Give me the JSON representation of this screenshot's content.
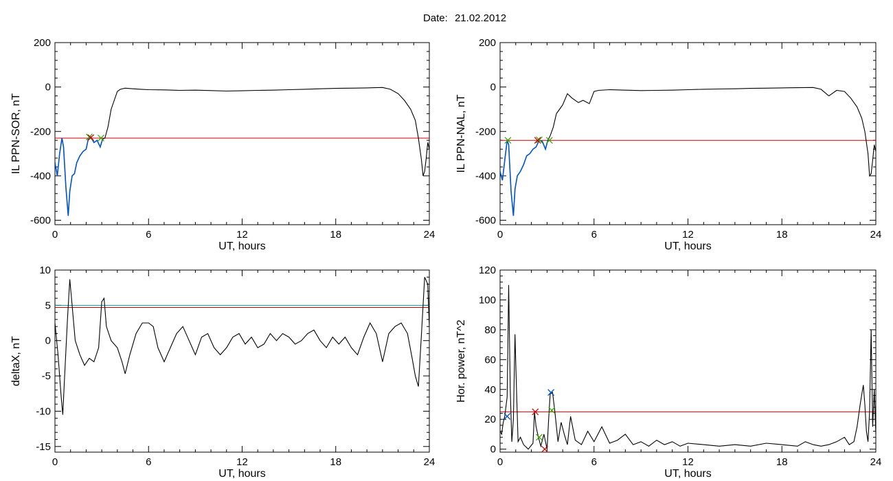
{
  "header": {
    "date_label": "Date:",
    "date_value": "21.02.2012"
  },
  "colors": {
    "trace": "#000000",
    "threshold": "#cc0000",
    "threshold2": "#009999",
    "highlight": "#0055cc",
    "marker_green": "#33aa00",
    "marker_red": "#cc0000",
    "marker_blue": "#0055cc"
  },
  "chart_data": [
    {
      "id": "il-sor",
      "type": "line",
      "xlabel": "UT, hours",
      "ylabel": "IL PPN-SOR, nT",
      "xlim": [
        0,
        24
      ],
      "ylim": [
        -620,
        200
      ],
      "xticks": [
        0,
        6,
        12,
        18,
        24
      ],
      "yticks": [
        -600,
        -400,
        -200,
        0,
        200
      ],
      "thresholds": [
        -230
      ],
      "highlight_range": [
        0,
        3.1
      ],
      "series": [
        {
          "x": [
            0.0,
            0.15,
            0.3,
            0.45,
            0.55,
            0.7,
            0.85,
            0.95,
            1.1,
            1.25,
            1.4,
            1.6,
            1.8,
            2.0,
            2.15,
            2.3,
            2.5,
            2.7,
            2.9,
            3.05,
            3.2,
            3.4,
            3.6,
            3.8,
            4.0,
            4.2,
            4.5,
            5.0,
            5.5,
            6.0,
            7.0,
            8.0,
            9.0,
            10.0,
            11.0,
            12.0,
            13.0,
            14.0,
            15.0,
            16.0,
            17.0,
            18.0,
            19.0,
            20.0,
            20.5,
            21.0,
            21.5,
            22.0,
            22.4,
            22.8,
            23.1,
            23.3,
            23.5,
            23.6,
            23.7,
            23.8,
            23.9,
            24.0
          ],
          "y": [
            -340,
            -400,
            -300,
            -230,
            -270,
            -450,
            -580,
            -470,
            -400,
            -390,
            -340,
            -310,
            -290,
            -280,
            -230,
            -225,
            -250,
            -240,
            -270,
            -235,
            -230,
            -180,
            -100,
            -60,
            -20,
            -10,
            -5,
            -8,
            -10,
            -12,
            -13,
            -15,
            -14,
            -16,
            -18,
            -17,
            -15,
            -14,
            -12,
            -10,
            -8,
            -6,
            -5,
            -4,
            -3,
            -2,
            -10,
            -30,
            -60,
            -100,
            -150,
            -230,
            -330,
            -400,
            -380,
            -320,
            -250,
            -280
          ]
        }
      ],
      "markers": [
        {
          "x": 2.2,
          "y": -225,
          "color": "green"
        },
        {
          "x": 2.95,
          "y": -230,
          "color": "green"
        },
        {
          "x": 2.3,
          "y": -228,
          "color": "red"
        }
      ]
    },
    {
      "id": "il-nal",
      "type": "line",
      "xlabel": "UT, hours",
      "ylabel": "IL PPN-NAL, nT",
      "xlim": [
        0,
        24
      ],
      "ylim": [
        -620,
        200
      ],
      "xticks": [
        0,
        6,
        12,
        18,
        24
      ],
      "yticks": [
        -600,
        -400,
        -200,
        0,
        200
      ],
      "thresholds": [
        -240
      ],
      "highlight_range": [
        0,
        3.1
      ],
      "series": [
        {
          "x": [
            0.0,
            0.15,
            0.3,
            0.45,
            0.55,
            0.7,
            0.85,
            0.95,
            1.1,
            1.3,
            1.5,
            1.7,
            1.9,
            2.1,
            2.3,
            2.5,
            2.7,
            2.9,
            3.05,
            3.2,
            3.4,
            3.6,
            3.8,
            4.0,
            4.3,
            4.6,
            5.0,
            5.3,
            5.7,
            6.0,
            6.3,
            7.0,
            8.0,
            9.0,
            10.0,
            11.0,
            12.0,
            13.0,
            14.0,
            15.0,
            16.0,
            17.0,
            18.0,
            19.0,
            20.0,
            20.5,
            21.0,
            21.5,
            22.0,
            22.4,
            22.8,
            23.1,
            23.3,
            23.5,
            23.6,
            23.7,
            23.8,
            23.9,
            24.0
          ],
          "y": [
            -380,
            -420,
            -330,
            -240,
            -260,
            -470,
            -580,
            -460,
            -400,
            -380,
            -350,
            -310,
            -300,
            -280,
            -270,
            -240,
            -245,
            -280,
            -240,
            -220,
            -180,
            -120,
            -100,
            -80,
            -30,
            -50,
            -70,
            -60,
            -75,
            -20,
            -15,
            -12,
            -14,
            -16,
            -15,
            -14,
            -12,
            -10,
            -9,
            -8,
            -6,
            -5,
            -4,
            -3,
            -2,
            -10,
            -40,
            -15,
            -20,
            -50,
            -90,
            -140,
            -200,
            -300,
            -400,
            -390,
            -330,
            -260,
            -290
          ]
        }
      ],
      "markers": [
        {
          "x": 0.5,
          "y": -240,
          "color": "green"
        },
        {
          "x": 2.5,
          "y": -238,
          "color": "green"
        },
        {
          "x": 3.15,
          "y": -240,
          "color": "green"
        },
        {
          "x": 2.4,
          "y": -240,
          "color": "red"
        }
      ]
    },
    {
      "id": "delta-x",
      "type": "line",
      "xlabel": "UT, hours",
      "ylabel": "deltaX, nT",
      "xlim": [
        0,
        24
      ],
      "ylim": [
        -15.8,
        10
      ],
      "xticks": [
        0,
        6,
        12,
        18,
        24
      ],
      "yticks": [
        -15,
        -10,
        -5,
        0,
        5,
        10
      ],
      "thresholds": [
        5.0,
        4.7
      ],
      "highlight_range": null,
      "series": [
        {
          "x": [
            0.0,
            0.2,
            0.4,
            0.5,
            0.6,
            0.8,
            0.95,
            1.1,
            1.3,
            1.6,
            1.9,
            2.2,
            2.5,
            2.8,
            3.0,
            3.15,
            3.3,
            3.6,
            4.0,
            4.3,
            4.5,
            4.8,
            5.2,
            5.6,
            6.0,
            6.3,
            6.6,
            7.0,
            7.4,
            7.8,
            8.2,
            8.6,
            9.0,
            9.4,
            9.8,
            10.2,
            10.6,
            11.0,
            11.4,
            11.8,
            12.2,
            12.6,
            13.0,
            13.4,
            13.8,
            14.2,
            14.6,
            15.0,
            15.4,
            15.8,
            16.2,
            16.6,
            17.0,
            17.4,
            17.8,
            18.2,
            18.6,
            19.0,
            19.4,
            19.8,
            20.2,
            20.6,
            21.0,
            21.4,
            21.8,
            22.2,
            22.6,
            22.9,
            23.1,
            23.3,
            23.5,
            23.7,
            23.9,
            24.0
          ],
          "y": [
            2.5,
            -2,
            -8,
            -10.5,
            -6,
            3,
            8.7,
            5,
            0,
            -2,
            -3.5,
            -2.5,
            -3,
            -1,
            5.5,
            6,
            2,
            0,
            -1,
            -3,
            -4.7,
            -2,
            1,
            2.5,
            2.5,
            2,
            -1,
            -3,
            -1,
            1,
            2,
            0,
            -2,
            0.5,
            1,
            -1,
            -2,
            -1,
            0.5,
            1,
            -0.5,
            0.5,
            -1,
            -0.5,
            1,
            0,
            1,
            0.5,
            -0.5,
            0,
            1,
            1.5,
            0,
            -1,
            0.5,
            -0.5,
            0.5,
            -1,
            -2,
            0.5,
            2.5,
            1,
            -3,
            1,
            2,
            2.5,
            1,
            -2.5,
            -5,
            -6.5,
            1,
            9,
            8,
            2
          ]
        }
      ],
      "markers": []
    },
    {
      "id": "hor-power",
      "type": "line",
      "xlabel": "UT, hours",
      "ylabel": "Hor. power, nT^2",
      "xlim": [
        0,
        24
      ],
      "ylim": [
        -2,
        120
      ],
      "xticks": [
        0,
        6,
        12,
        18,
        24
      ],
      "yticks": [
        0,
        20,
        40,
        60,
        80,
        100,
        120
      ],
      "thresholds": [
        25
      ],
      "highlight_range": null,
      "series": [
        {
          "x": [
            0.0,
            0.1,
            0.2,
            0.3,
            0.45,
            0.55,
            0.65,
            0.75,
            0.85,
            0.95,
            1.05,
            1.15,
            1.3,
            1.5,
            1.8,
            2.1,
            2.2,
            2.3,
            2.45,
            2.6,
            2.8,
            3.0,
            3.1,
            3.2,
            3.35,
            3.5,
            3.7,
            3.9,
            4.1,
            4.3,
            4.5,
            4.8,
            5.2,
            5.6,
            6.0,
            6.5,
            7.0,
            7.5,
            8.0,
            8.5,
            9.0,
            9.5,
            10.0,
            10.5,
            11.0,
            11.5,
            12.0,
            13.0,
            14.0,
            15.0,
            16.0,
            17.0,
            18.0,
            19.0,
            19.5,
            20.0,
            20.5,
            21.0,
            21.5,
            22.0,
            22.3,
            22.6,
            22.8,
            23.0,
            23.2,
            23.3,
            23.4,
            23.5,
            23.6,
            23.7,
            23.8,
            23.9,
            24.0
          ],
          "y": [
            12,
            10,
            18,
            22,
            35,
            110,
            40,
            5,
            20,
            77,
            40,
            5,
            8,
            3,
            0,
            4,
            25,
            15,
            8,
            2,
            10,
            0,
            20,
            37,
            38,
            25,
            5,
            18,
            10,
            3,
            22,
            6,
            3,
            12,
            5,
            15,
            4,
            6,
            10,
            3,
            5,
            2,
            6,
            3,
            5,
            2,
            4,
            3,
            2,
            3,
            2,
            4,
            3,
            2,
            5,
            3,
            2,
            3,
            5,
            8,
            3,
            5,
            15,
            30,
            43,
            30,
            12,
            5,
            25,
            80,
            15,
            40,
            10
          ]
        }
      ],
      "markers": [
        {
          "x": 0.45,
          "y": 22,
          "color": "blue"
        },
        {
          "x": 2.25,
          "y": 25,
          "color": "red"
        },
        {
          "x": 2.5,
          "y": 8,
          "color": "green"
        },
        {
          "x": 2.85,
          "y": 0,
          "color": "red"
        },
        {
          "x": 3.25,
          "y": 38,
          "color": "blue"
        },
        {
          "x": 3.3,
          "y": 26,
          "color": "green"
        }
      ]
    }
  ]
}
